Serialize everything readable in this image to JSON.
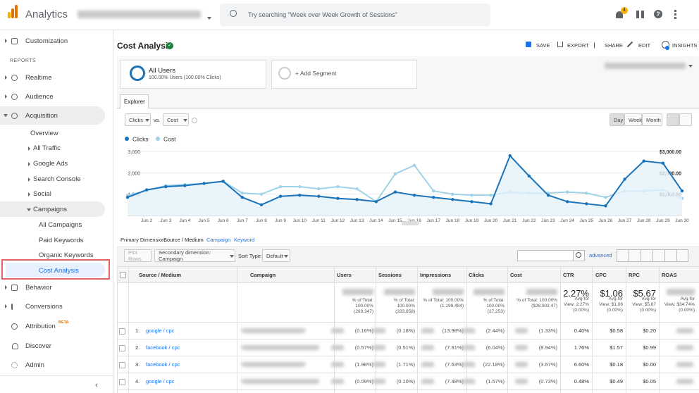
{
  "header": {
    "app_name": "Analytics",
    "search_placeholder": "Try searching \"Week over Week Growth of Sessions\"",
    "notification_count": 4
  },
  "sidebar": {
    "customization": "Customization",
    "reports_heading": "REPORTS",
    "realtime": "Realtime",
    "audience": "Audience",
    "acquisition": "Acquisition",
    "overview": "Overview",
    "all_traffic": "All Traffic",
    "google_ads": "Google Ads",
    "search_console": "Search Console",
    "social": "Social",
    "campaigns": "Campaigns",
    "all_campaigns": "All Campaigns",
    "paid_keywords": "Paid Keywords",
    "organic_keywords": "Organic Keywords",
    "cost_analysis": "Cost Analysis",
    "behavior": "Behavior",
    "conversions": "Conversions",
    "attribution": "Attribution",
    "beta": "BETA",
    "discover": "Discover",
    "admin": "Admin"
  },
  "report": {
    "title": "Cost Analysis",
    "actions": [
      "SAVE",
      "EXPORT",
      "SHARE",
      "EDIT",
      "INSIGHTS"
    ],
    "segment": {
      "name": "All Users",
      "detail": "100.00% Users (100.00% Clicks)",
      "add": "+ Add Segment"
    },
    "tab": "Explorer",
    "metric_1": "Clicks",
    "vs": "vs.",
    "metric_2": "Cost",
    "periods": [
      "Day",
      "Week",
      "Month"
    ]
  },
  "explorer_chart": {
    "type": "line",
    "categories": [
      null,
      "Jun 2",
      "Jun 3",
      "Jun 4",
      "Jun 5",
      "Jun 6",
      "Jun 7",
      "Jun 8",
      "Jun 9",
      "Jun 10",
      "Jun 11",
      "Jun 12",
      "Jun 13",
      "Jun 14",
      "Jun 15",
      "Jun 16",
      "Jun 17",
      "Jun 18",
      "Jun 19",
      "Jun 20",
      "Jun 21",
      "Jun 22",
      "Jun 23",
      "Jun 24",
      "Jun 25",
      "Jun 26",
      "Jun 27",
      "Jun 28",
      "Jun 29",
      "Jun 30"
    ],
    "series": [
      {
        "name": "Clicks",
        "color": "#1a73b8",
        "values": [
          850,
          1200,
          1350,
          1400,
          1500,
          1600,
          850,
          500,
          900,
          950,
          900,
          800,
          750,
          650,
          1100,
          950,
          850,
          750,
          650,
          550,
          2800,
          1850,
          950,
          650,
          550,
          450,
          1700,
          2550,
          2450,
          1150
        ]
      },
      {
        "name": "Cost",
        "color": "#9fd3ea",
        "axis": "y2",
        "values": [
          950,
          1150,
          1400,
          1450,
          1500,
          1600,
          1050,
          1000,
          1350,
          1350,
          1250,
          1350,
          1250,
          650,
          1950,
          2350,
          1150,
          1000,
          950,
          950,
          1100,
          1050,
          1050,
          1100,
          1050,
          850,
          1150,
          1150,
          1200,
          800
        ]
      }
    ],
    "ylim": [
      0,
      3000
    ],
    "yticks": [
      {
        "value": 1000,
        "label": "1,000"
      },
      {
        "value": 2000,
        "label": "2,000"
      },
      {
        "value": 3000,
        "label": "3,000"
      }
    ],
    "y2lim": [
      0,
      3000
    ],
    "y2ticks": [
      {
        "value": 1000,
        "label": "$1,000.00"
      },
      {
        "value": 2000,
        "label": "$2,000.00"
      },
      {
        "value": 3000,
        "label": "$3,000.00"
      }
    ],
    "grid": true
  },
  "dimensions": {
    "label": "Primary Dimension:",
    "selected": "Source / Medium",
    "others": [
      "Campaign",
      "Keyword"
    ]
  },
  "table_tools": {
    "plot_rows": "Plot Rows",
    "secondary": "Secondary dimension: Campaign",
    "sort_label": "Sort Type:",
    "sort_value": "Default",
    "advanced": "advanced"
  },
  "table": {
    "headers": [
      "Source / Medium",
      "Campaign",
      "Users",
      "Sessions",
      "Impressions",
      "Clicks",
      "Cost",
      "CTR",
      "CPC",
      "RPC",
      "ROAS"
    ],
    "totals": {
      "users": [
        "% of Total:",
        "100.00%",
        "(269,347)"
      ],
      "sessions": [
        "% of Total:",
        "100.00%",
        "(333,858)"
      ],
      "impressions": [
        "% of Total: 100.00%",
        "(1,199,484)"
      ],
      "clicks": [
        "% of Total:",
        "100.00%",
        "(27,253)"
      ],
      "cost": [
        "% of Total: 100.00%",
        "($28,903.47)"
      ],
      "ctr": [
        "2.27%",
        "Avg for",
        "View: 2.27%",
        "(0.00%)"
      ],
      "cpc": [
        "$1.06",
        "Avg for",
        "View: $1.06",
        "(0.00%)"
      ],
      "rpc": [
        "$5.67",
        "Avg for",
        "View: $5.67",
        "(0.00%)"
      ],
      "roas": [
        "Avg for",
        "View: $34.74%",
        "(0.00%)"
      ]
    },
    "rows": [
      [
        "1.",
        "google / cpc",
        "(0.16%)",
        "(0.18%)",
        "(13.98%)",
        "(2.44%)",
        "(1.33%)",
        "0.40%",
        "$0.58",
        "$0.20"
      ],
      [
        "2.",
        "facebook / cpc",
        "(0.57%)",
        "(0.51%)",
        "(7.81%)",
        "(6.04%)",
        "(8.94%)",
        "1.76%",
        "$1.57",
        "$0.99"
      ],
      [
        "3.",
        "facebook / cpc",
        "(1.98%)",
        "(1.71%)",
        "(7.63%)",
        "(22.18%)",
        "(3.67%)",
        "6.60%",
        "$0.18",
        "$0.00"
      ],
      [
        "4.",
        "google / cpc",
        "(0.09%)",
        "(0.10%)",
        "(7.48%)",
        "(1.57%)",
        "(0.73%)",
        "0.48%",
        "$0.49",
        "$0.05"
      ]
    ]
  }
}
